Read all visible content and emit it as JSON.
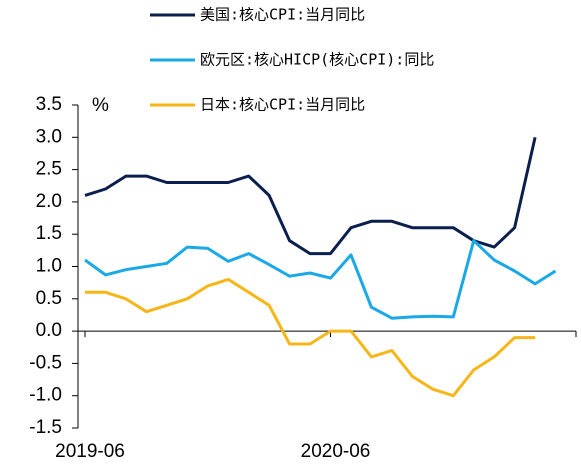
{
  "chart_data": {
    "type": "line",
    "unit_label": "%",
    "categories": [
      "2019-06",
      null,
      null,
      null,
      null,
      null,
      null,
      null,
      null,
      null,
      null,
      null,
      "2020-06",
      null,
      null,
      null,
      null,
      null,
      null,
      null,
      null,
      null,
      null,
      null
    ],
    "series": [
      {
        "name": "美国:核心CPI:当月同比",
        "color": "#0b1f4f",
        "values": [
          2.1,
          2.2,
          2.4,
          2.4,
          2.3,
          2.3,
          2.3,
          2.3,
          2.4,
          2.1,
          1.4,
          1.2,
          1.2,
          1.6,
          1.7,
          1.7,
          1.6,
          1.6,
          1.6,
          1.4,
          1.3,
          1.6,
          3.0,
          null
        ]
      },
      {
        "name": "欧元区:核心HICP(核心CPI):同比",
        "color": "#1ba8e6",
        "values": [
          1.1,
          0.87,
          0.95,
          1.0,
          1.05,
          1.3,
          1.28,
          1.08,
          1.2,
          1.03,
          0.85,
          0.9,
          0.82,
          1.18,
          0.37,
          0.2,
          0.22,
          0.23,
          0.22,
          1.4,
          1.1,
          0.93,
          0.73,
          0.93
        ]
      },
      {
        "name": "日本:核心CPI:当月同比",
        "color": "#f6b617",
        "values": [
          0.6,
          0.6,
          0.5,
          0.3,
          0.4,
          0.5,
          0.7,
          0.8,
          0.6,
          0.4,
          -0.2,
          -0.2,
          0.0,
          0.0,
          -0.4,
          -0.3,
          -0.7,
          -0.9,
          -1.0,
          -0.6,
          -0.4,
          -0.1,
          -0.1,
          null
        ]
      }
    ],
    "ylim": [
      -1.5,
      3.5
    ],
    "yticks": [
      {
        "value": 3.5,
        "label": "3.5"
      },
      {
        "value": 3.0,
        "label": "3.0"
      },
      {
        "value": 2.5,
        "label": "2.5"
      },
      {
        "value": 2.0,
        "label": "2.0"
      },
      {
        "value": 1.5,
        "label": "1.5"
      },
      {
        "value": 1.0,
        "label": "1.0"
      },
      {
        "value": 0.5,
        "label": "0.5"
      },
      {
        "value": 0.0,
        "label": "0.0"
      },
      {
        "value": -0.5,
        "label": "-0.5"
      },
      {
        "value": -1.0,
        "label": "-1.0"
      },
      {
        "value": -1.5,
        "label": "-1.5"
      }
    ],
    "legend": "top"
  }
}
